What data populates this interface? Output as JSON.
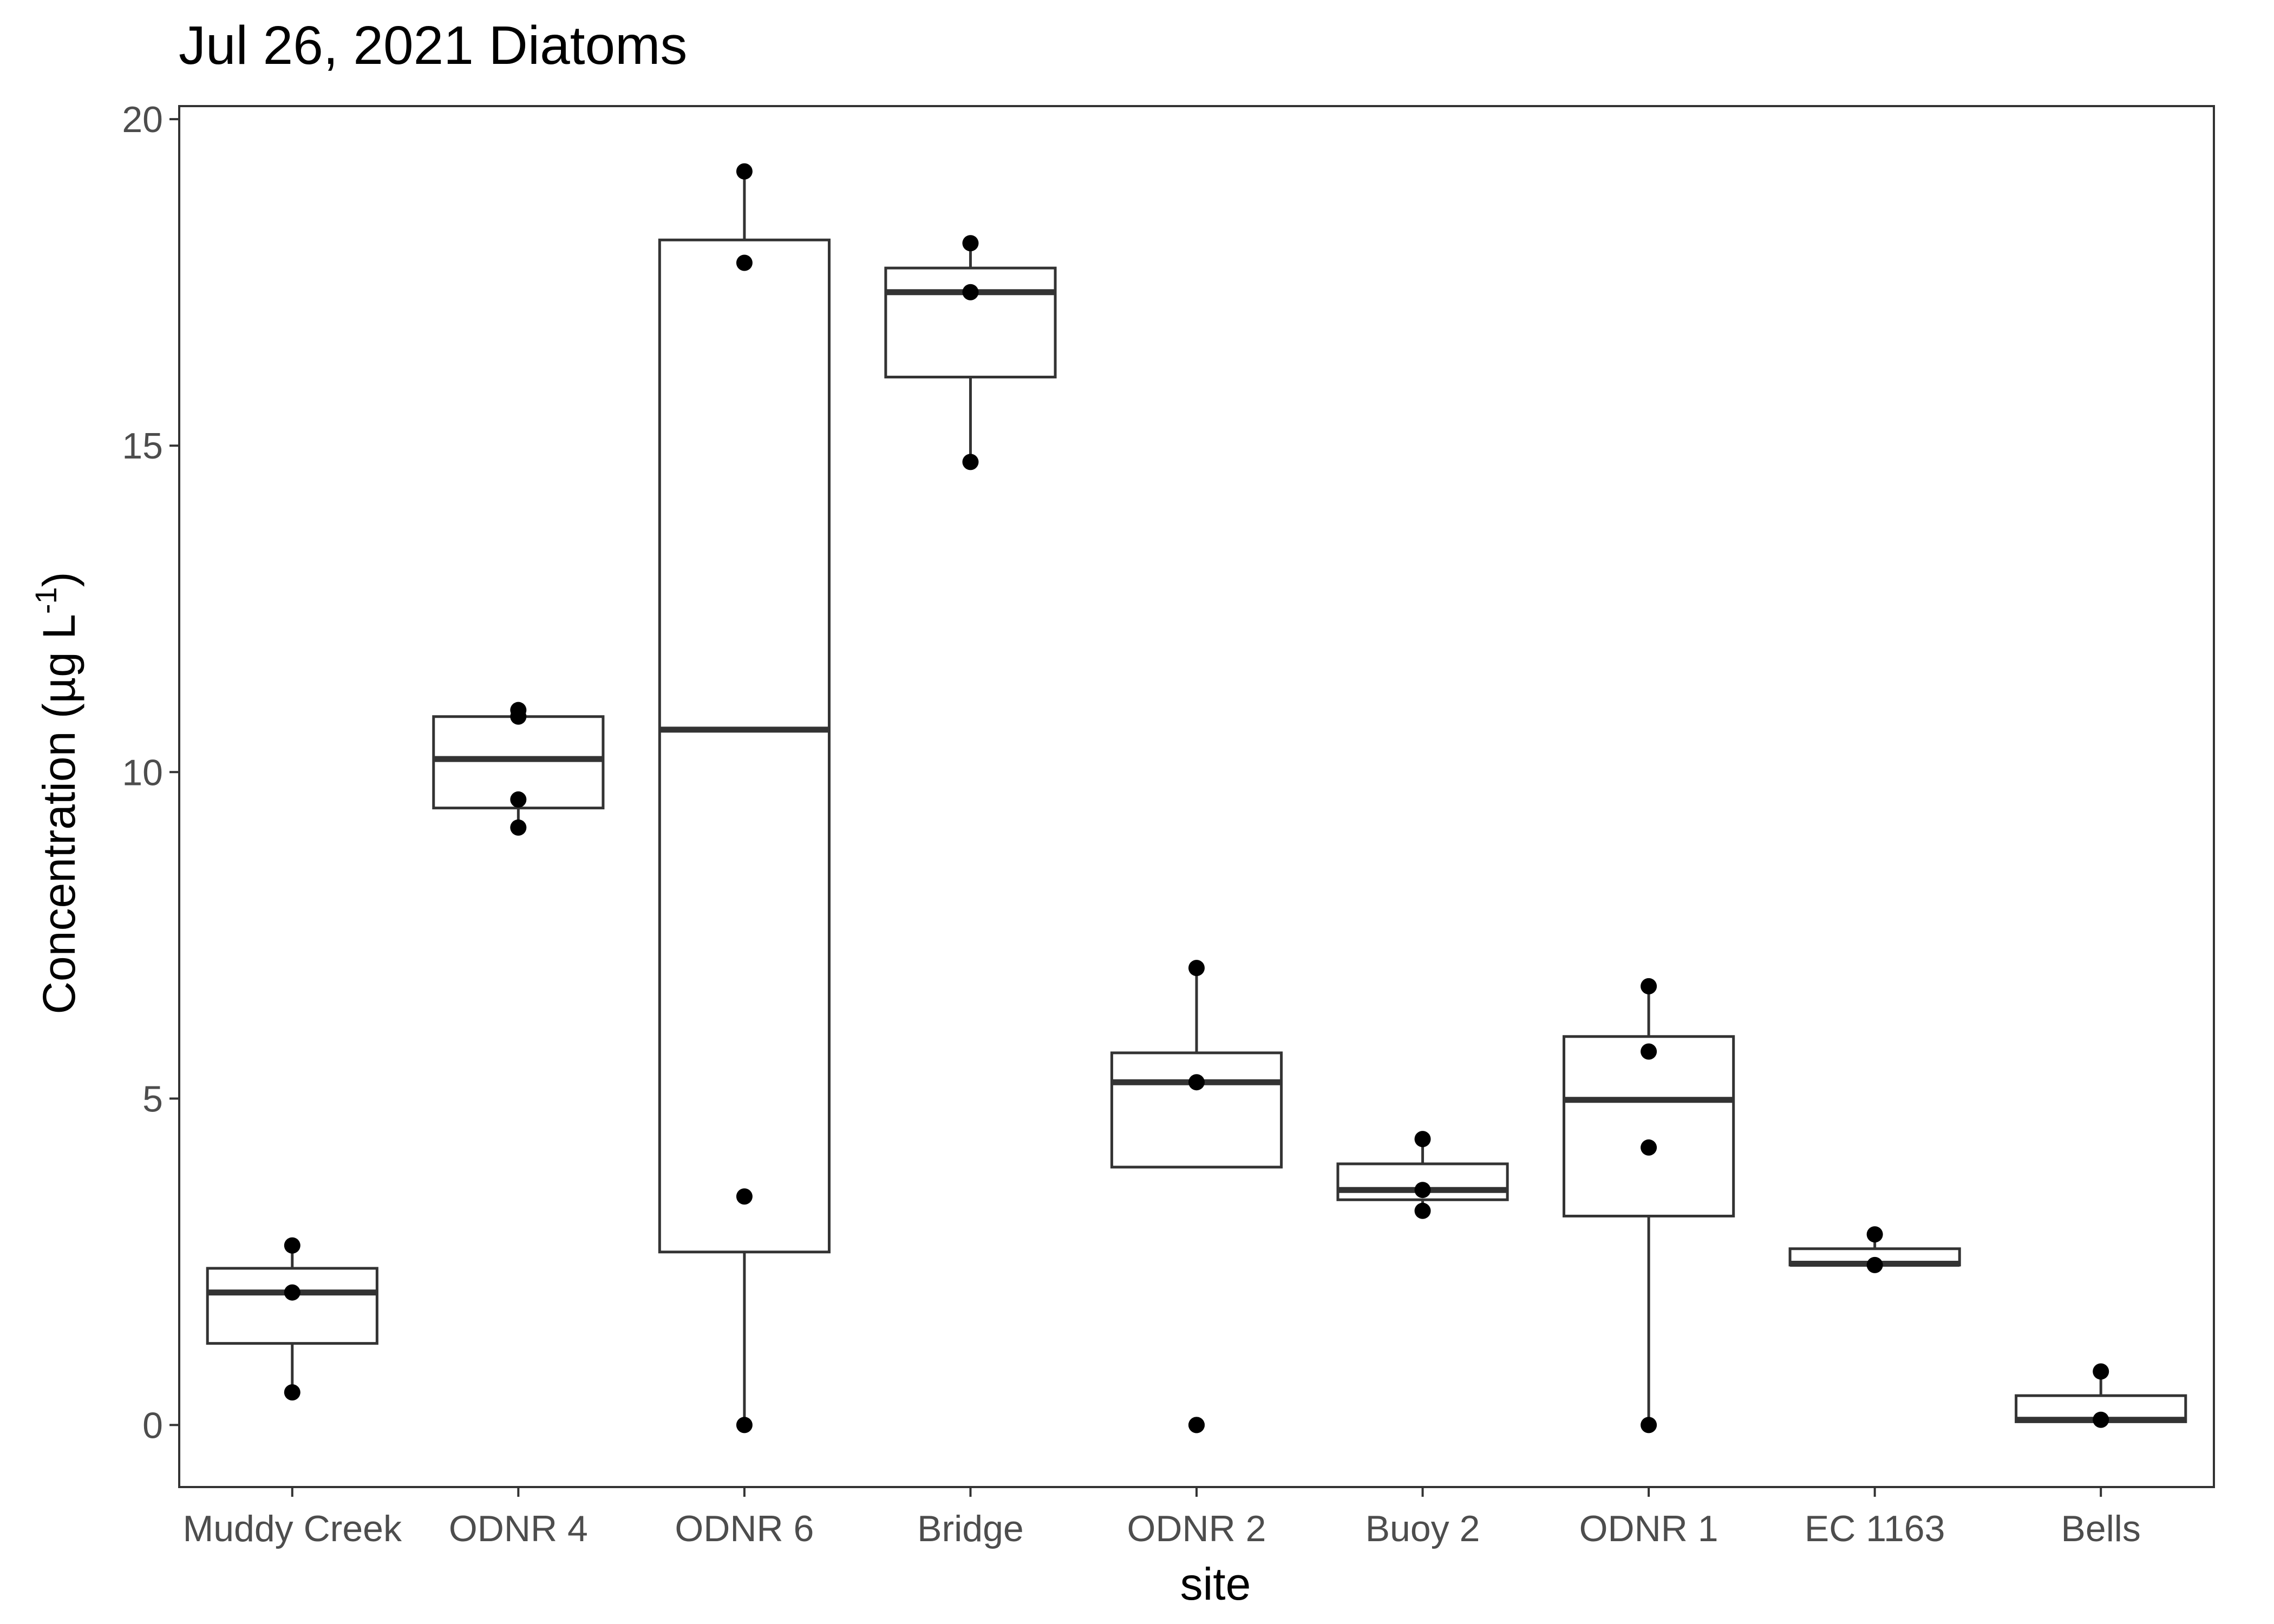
{
  "chart_data": {
    "type": "boxplot",
    "title": "Jul 26, 2021 Diatoms",
    "xlabel": "site",
    "ylabel": {
      "main": "Concentration (µg L",
      "superscript": "-1",
      "close": ")"
    },
    "ylim": [
      -0.95,
      20.2
    ],
    "yticks": [
      0,
      5,
      10,
      15,
      20
    ],
    "grid": false,
    "categories": [
      "Muddy Creek",
      "ODNR 4",
      "ODNR 6",
      "Bridge",
      "ODNR 2",
      "Buoy 2",
      "ODNR 1",
      "EC 1163",
      "Bells"
    ],
    "boxes": [
      {
        "site": "Muddy Creek",
        "whisker_low": 0.5,
        "q1": 1.25,
        "median": 2.03,
        "q3": 2.4,
        "whisker_high": 2.75
      },
      {
        "site": "ODNR 4",
        "whisker_low": 9.15,
        "q1": 9.45,
        "median": 10.2,
        "q3": 10.85,
        "whisker_high": 10.95
      },
      {
        "site": "ODNR 6",
        "whisker_low": 0.0,
        "q1": 2.65,
        "median": 10.65,
        "q3": 18.15,
        "whisker_high": 19.2
      },
      {
        "site": "Bridge",
        "whisker_low": 14.75,
        "q1": 16.05,
        "median": 17.35,
        "q3": 17.72,
        "whisker_high": 18.1
      },
      {
        "site": "ODNR 2",
        "whisker_low": 3.95,
        "q1": 3.95,
        "median": 5.25,
        "q3": 5.7,
        "whisker_high": 7.0
      },
      {
        "site": "Buoy 2",
        "whisker_low": 3.28,
        "q1": 3.45,
        "median": 3.6,
        "q3": 4.0,
        "whisker_high": 4.38
      },
      {
        "site": "ODNR 1",
        "whisker_low": 0.0,
        "q1": 3.2,
        "median": 4.98,
        "q3": 5.95,
        "whisker_high": 6.72
      },
      {
        "site": "EC 1163",
        "whisker_low": 2.45,
        "q1": 2.45,
        "median": 2.47,
        "q3": 2.7,
        "whisker_high": 2.92
      },
      {
        "site": "Bells",
        "whisker_low": 0.05,
        "q1": 0.05,
        "median": 0.08,
        "q3": 0.45,
        "whisker_high": 0.82
      }
    ],
    "points": [
      {
        "site": "Muddy Creek",
        "values": [
          0.5,
          2.03,
          2.75
        ]
      },
      {
        "site": "ODNR 4",
        "values": [
          9.15,
          9.58,
          10.85,
          10.95
        ]
      },
      {
        "site": "ODNR 6",
        "values": [
          0.0,
          3.5,
          17.8,
          19.2
        ]
      },
      {
        "site": "Bridge",
        "values": [
          14.75,
          17.35,
          18.1
        ]
      },
      {
        "site": "ODNR 2",
        "values": [
          0.0,
          0.0,
          5.25,
          7.0
        ]
      },
      {
        "site": "Buoy 2",
        "values": [
          3.28,
          3.6,
          4.38
        ]
      },
      {
        "site": "ODNR 1",
        "values": [
          0.0,
          4.25,
          5.72,
          6.72
        ]
      },
      {
        "site": "EC 1163",
        "values": [
          2.45,
          2.92
        ]
      },
      {
        "site": "Bells",
        "values": [
          0.08,
          0.82
        ]
      }
    ],
    "colors": {
      "box_line": "#333333",
      "point": "#000000",
      "panel_border": "#333333",
      "tick_label": "#4d4d4d"
    }
  }
}
